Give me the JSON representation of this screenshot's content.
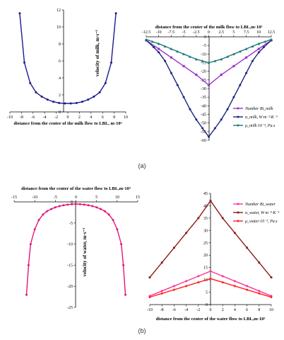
{
  "captions": {
    "a": "(a)",
    "b": "(b)"
  },
  "chart_data": [
    {
      "id": "a-left",
      "type": "line",
      "xlabel": "distance from the center of the milk flow to LBL, m·10³",
      "ylabel": "velocity of milk, m·s⁻¹",
      "xlim": [
        -10,
        10
      ],
      "ylim": [
        0,
        12
      ],
      "x_ticks": [
        -10,
        -8,
        -6,
        -4,
        -2,
        0,
        2,
        4,
        6,
        8,
        10
      ],
      "y_ticks": [
        0,
        2,
        4,
        6,
        8,
        10,
        12
      ],
      "series": [
        {
          "color": "#1a1a8c",
          "x": [
            -8.3,
            -7.5,
            -6.5,
            -5.5,
            -4.5,
            -3.5,
            -2.5,
            -1.5,
            -0.5,
            0.5,
            1.5,
            2.5,
            3.5,
            4.5,
            5.5,
            6.5,
            7.5,
            8.3
          ],
          "y": [
            11.6,
            5.8,
            3.4,
            2.3,
            1.8,
            1.45,
            1.2,
            1.05,
            1.0,
            1.0,
            1.05,
            1.2,
            1.45,
            1.8,
            2.3,
            3.4,
            5.8,
            11.6
          ]
        }
      ]
    },
    {
      "id": "a-right",
      "type": "line",
      "title": "distance from the center of the milk flow to LBL,m·10³",
      "xlim": [
        -12.5,
        12.5
      ],
      "ylim": [
        -60,
        0
      ],
      "x_ticks": [
        -12.5,
        -10,
        -7.5,
        -5,
        -2.5,
        0,
        2.5,
        5,
        7.5,
        10,
        12.5
      ],
      "y_ticks": [
        0,
        -5,
        -10,
        -15,
        -20,
        -25,
        -30,
        -35,
        -40,
        -45,
        -50,
        -55,
        -60
      ],
      "legend": "bottom-right",
      "series": [
        {
          "name": "Number Bi_milk",
          "color": "#9933cc",
          "x": [
            -12.5,
            -10,
            -7.5,
            -5,
            -2.5,
            0,
            2.5,
            5,
            7.5,
            10,
            12.5
          ],
          "y": [
            -2,
            -7,
            -12,
            -17,
            -22,
            -28,
            -22,
            -17,
            -12,
            -7,
            -2
          ]
        },
        {
          "name": "α_milk, W·m⁻²·K⁻¹",
          "color": "#1a237e",
          "x": [
            -12.5,
            -11,
            -10,
            -8.75,
            -7.5,
            -6.25,
            -5,
            -3.75,
            -2.5,
            -1.25,
            0,
            1.25,
            2.5,
            3.75,
            5,
            6.25,
            7.5,
            8.75,
            10,
            11,
            12.5
          ],
          "y": [
            -2,
            -6,
            -9,
            -14,
            -21,
            -28,
            -35,
            -42,
            -48,
            -53,
            -58,
            -53,
            -48,
            -42,
            -35,
            -28,
            -21,
            -14,
            -9,
            -6,
            -2
          ]
        },
        {
          "name": "μ_milk·10⁻³, Pa.s",
          "color": "#1f7a7a",
          "x": [
            -12.5,
            -11.25,
            -10,
            -8.75,
            -7.5,
            -6.25,
            -5,
            -3.75,
            -2.5,
            -1.25,
            0,
            1.25,
            2.5,
            3.75,
            5,
            6.25,
            7.5,
            8.75,
            10,
            11.25,
            12.5
          ],
          "y": [
            -1.5,
            -2.8,
            -4,
            -5.5,
            -7,
            -8.5,
            -10,
            -11.5,
            -13,
            -14,
            -15,
            -14,
            -13,
            -11.5,
            -10,
            -8.5,
            -7,
            -5.5,
            -4,
            -2.8,
            -1.5
          ]
        }
      ]
    },
    {
      "id": "b-left",
      "type": "line",
      "title": "distance from the center of the water flow to LBL,m·10³",
      "ylabel": "velocity of water, m·s⁻¹",
      "xlim": [
        -15,
        15
      ],
      "ylim": [
        -25,
        0
      ],
      "x_ticks": [
        -15,
        -10,
        -5,
        0,
        5,
        10,
        15
      ],
      "y_ticks": [
        0,
        -5,
        -10,
        -15,
        -20,
        -25
      ],
      "series": [
        {
          "color": "#e0187a",
          "x": [
            -12,
            -11.5,
            -11,
            -10,
            -9,
            -8,
            -7,
            -6,
            -5,
            -4,
            -3,
            -2,
            -1,
            0,
            1,
            2,
            3,
            4,
            5,
            6,
            7,
            8,
            9,
            10,
            11,
            11.5,
            12
          ],
          "y": [
            -22,
            -15,
            -10,
            -6.5,
            -4.3,
            -3,
            -2.2,
            -1.7,
            -1.3,
            -1.0,
            -0.8,
            -0.65,
            -0.55,
            -0.5,
            -0.55,
            -0.65,
            -0.8,
            -1.0,
            -1.3,
            -1.7,
            -2.2,
            -3,
            -4.3,
            -6.5,
            -10,
            -15,
            -22
          ]
        }
      ]
    },
    {
      "id": "b-right",
      "type": "line",
      "xlabel": "distance from the center of the water flow to LBL,m·10³",
      "xlim": [
        -10,
        10
      ],
      "ylim": [
        0,
        45
      ],
      "x_ticks": [
        -10,
        -8,
        -6,
        -4,
        -2,
        0,
        2,
        4,
        6,
        8,
        10
      ],
      "y_ticks": [
        0,
        5,
        10,
        15,
        20,
        25,
        30,
        35,
        40,
        45
      ],
      "legend": "top-right",
      "series": [
        {
          "name": "Number Bi_water",
          "color": "#ff3399",
          "x": [
            -10,
            -8,
            -6,
            -4,
            -2,
            0,
            2,
            4,
            6,
            8,
            10
          ],
          "y": [
            3.5,
            5.5,
            7.5,
            9.5,
            11.5,
            13.5,
            11.5,
            9.5,
            7.5,
            5.5,
            3.5
          ]
        },
        {
          "name": "α_water, W·m⁻²·K⁻¹",
          "color": "#8b1a1a",
          "x": [
            -10,
            -8,
            -6,
            -4,
            -2,
            0,
            2,
            4,
            6,
            8,
            10
          ],
          "y": [
            11,
            17,
            23,
            29,
            35,
            42,
            35,
            29,
            23,
            17,
            11
          ]
        },
        {
          "name": "μ_water·10⁻³, Pa.s",
          "color": "#ff2020",
          "x": [
            -10,
            -8,
            -6,
            -4,
            -2,
            0,
            2,
            4,
            6,
            8,
            10
          ],
          "y": [
            3,
            4.5,
            6,
            7.5,
            9,
            10.5,
            9,
            7.5,
            6,
            4.5,
            3
          ]
        }
      ]
    }
  ]
}
